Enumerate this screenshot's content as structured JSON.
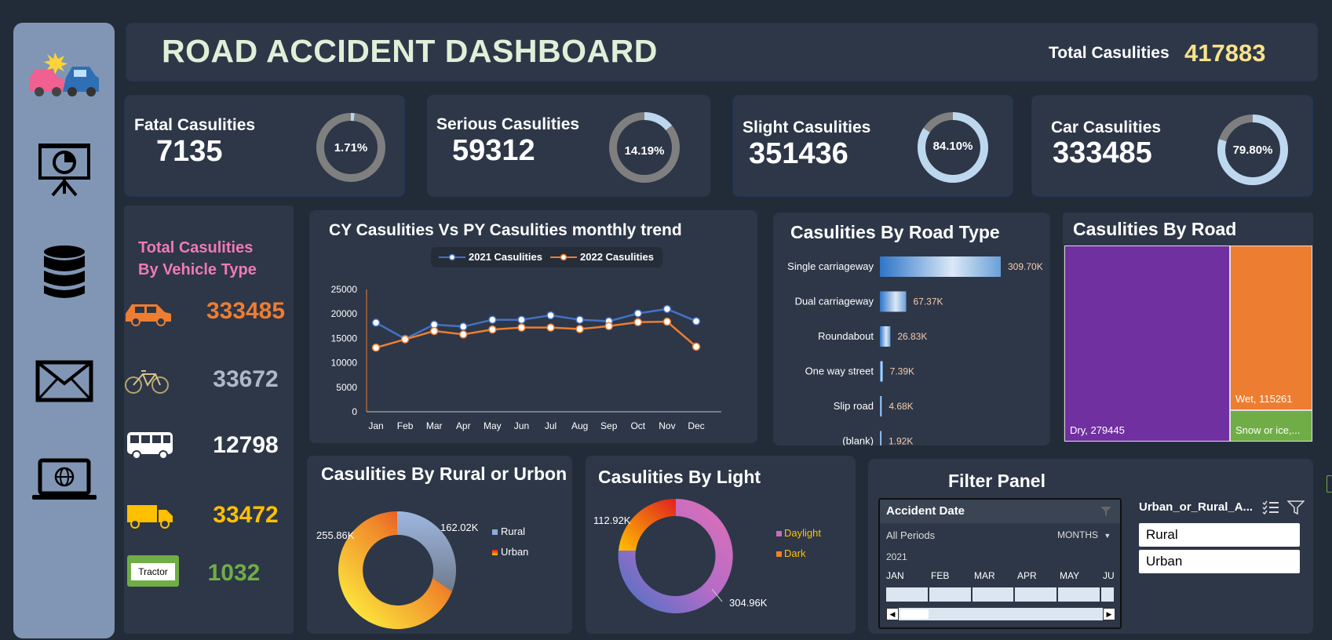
{
  "header": {
    "title": "ROAD ACCIDENT DASHBOARD",
    "total_label": "Total Casulities",
    "total_value": "417883"
  },
  "sidebar": {
    "icons": [
      "car-crash-icon",
      "presentation-chart-icon",
      "database-icon",
      "mail-icon",
      "laptop-globe-icon"
    ]
  },
  "kpis": [
    {
      "label": "Fatal Casulities",
      "value": "7135",
      "pct": "1.71%",
      "fraction": 0.0171
    },
    {
      "label": "Serious Casulities",
      "value": "59312",
      "pct": "14.19%",
      "fraction": 0.1419
    },
    {
      "label": "Slight Casulities",
      "value": "351436",
      "pct": "84.10%",
      "fraction": 0.841
    },
    {
      "label": "Car Casulities",
      "value": "333485",
      "pct": "79.80%",
      "fraction": 0.798
    }
  ],
  "vehicle": {
    "title_line1": "Total Casulities",
    "title_line2": "By Vehicle Type",
    "rows": [
      {
        "icon": "car-icon",
        "value": "333485",
        "color": "#ed7d31"
      },
      {
        "icon": "bicycle-icon",
        "value": "33672",
        "color": "#aeb9c8"
      },
      {
        "icon": "bus-icon",
        "value": "12798",
        "color": "#ffffff"
      },
      {
        "icon": "truck-icon",
        "value": "33472",
        "color": "#ffc000"
      },
      {
        "icon": "tractor-icon",
        "value": "1032",
        "color": "#70ad47",
        "label": "Tractor"
      }
    ]
  },
  "colors": {
    "series_2021": "#4472c4",
    "series_2022": "#ed7d31",
    "purple": "#7030a0",
    "orange": "#ed7d31",
    "green": "#70ad47",
    "title_pink": "#f07ab3"
  },
  "chart_data": [
    {
      "type": "line",
      "title": "CY Casulities Vs PY Casulities monthly trend",
      "categories": [
        "Jan",
        "Feb",
        "Mar",
        "Apr",
        "May",
        "Jun",
        "Jul",
        "Aug",
        "Sep",
        "Oct",
        "Nov",
        "Dec"
      ],
      "series": [
        {
          "name": "2021 Casulities",
          "values": [
            18200,
            14900,
            17800,
            17400,
            18800,
            18800,
            19700,
            18800,
            18500,
            20100,
            21000,
            18500
          ]
        },
        {
          "name": "2022 Casulities",
          "values": [
            13100,
            14800,
            16500,
            15800,
            16800,
            17200,
            17200,
            16900,
            17500,
            18300,
            18400,
            13300
          ]
        }
      ],
      "yticks": [
        "25000",
        "20000",
        "15000",
        "10000",
        "5000",
        "0"
      ],
      "ylim": [
        0,
        25000
      ]
    },
    {
      "type": "bar",
      "title": "Casulities By Road Type",
      "categories": [
        "Single carriageway",
        "Dual carriageway",
        "Roundabout",
        "One way street",
        "Slip road",
        "(blank)"
      ],
      "values": [
        309.7,
        67.37,
        26.83,
        7.39,
        4.68,
        1.92
      ],
      "labels": [
        "309.70K",
        "67.37K",
        "26.83K",
        "7.39K",
        "4.68K",
        "1.92K"
      ]
    },
    {
      "type": "treemap",
      "title": "Casulities By Road",
      "items": [
        {
          "name": "Dry",
          "value": 279445,
          "label": "Dry, 279445"
        },
        {
          "name": "Wet",
          "value": 115261,
          "label": "Wet, 115261"
        },
        {
          "name": "Snow or ice",
          "value": 23177,
          "label": "Snow or ice,..."
        }
      ]
    },
    {
      "type": "pie",
      "title": "Casulities By Rural or Urbon",
      "series": [
        {
          "name": "Rural",
          "value": 162.02,
          "label": "162.02K"
        },
        {
          "name": "Urban",
          "value": 255.86,
          "label": "255.86K"
        }
      ]
    },
    {
      "type": "pie",
      "title": "Casulities By Light",
      "series": [
        {
          "name": "Daylight",
          "value": 304.96,
          "label": "304.96K"
        },
        {
          "name": "Dark",
          "value": 112.92,
          "label": "112.92K"
        }
      ]
    }
  ],
  "filter": {
    "title": "Filter Panel",
    "timeline": {
      "header": "Accident Date",
      "period": "All Periods",
      "unit": "MONTHS",
      "year": "2021",
      "months": [
        "JAN",
        "FEB",
        "MAR",
        "APR",
        "MAY",
        "JU"
      ]
    },
    "slicer": {
      "header": "Urban_or_Rural_A...",
      "options": [
        "Rural",
        "Urban"
      ]
    }
  }
}
